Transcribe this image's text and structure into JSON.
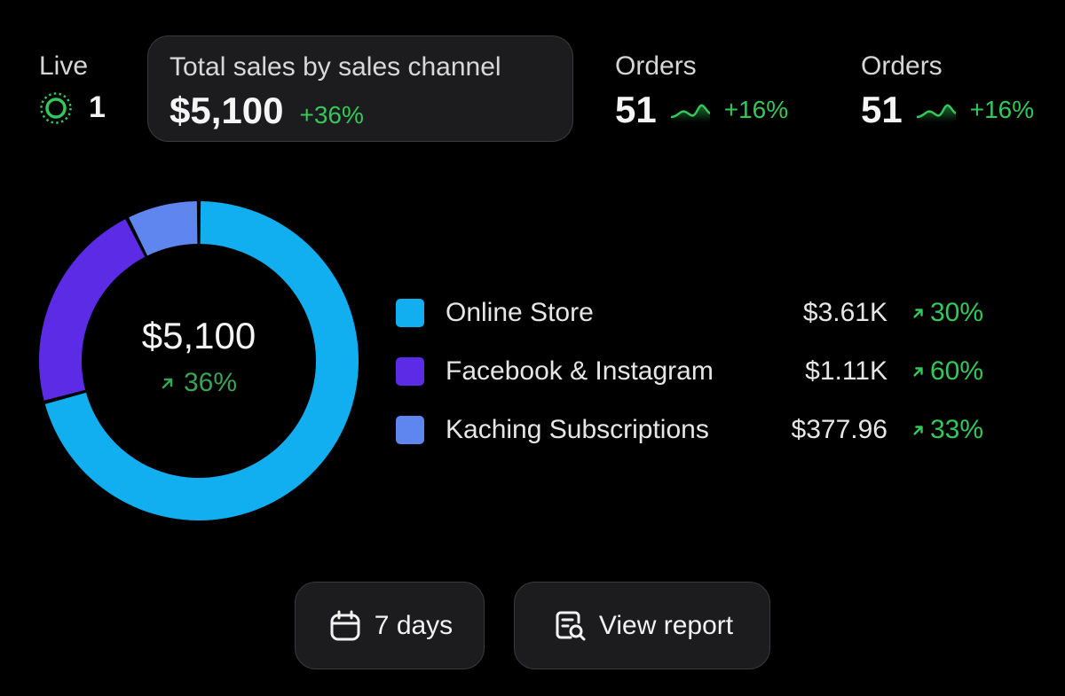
{
  "live": {
    "label": "Live",
    "count": "1"
  },
  "sales_card": {
    "title": "Total sales by sales channel",
    "value": "$5,100",
    "change": "+36%"
  },
  "orders": [
    {
      "title": "Orders",
      "value": "51",
      "change": "+16%"
    },
    {
      "title": "Orders",
      "value": "51",
      "change": "+16%"
    }
  ],
  "donut": {
    "total": "$5,100",
    "change": "36%"
  },
  "chart_data": {
    "type": "pie",
    "categories": [
      "Online Store",
      "Facebook & Instagram",
      "Kaching Subscriptions"
    ],
    "values": [
      3610,
      1110,
      377.96
    ],
    "value_labels": [
      "$3.61K",
      "$1.11K",
      "$377.96"
    ],
    "changes": [
      "30%",
      "60%",
      "33%"
    ],
    "colors": [
      "#12aff0",
      "#5b2be6",
      "#5f86ee"
    ],
    "legend_position": "right"
  },
  "buttons": {
    "days_label": "7 days",
    "report_label": "View report"
  },
  "colors": {
    "background": "#000000",
    "positive": "#34c759",
    "card": "#1c1c1e"
  }
}
